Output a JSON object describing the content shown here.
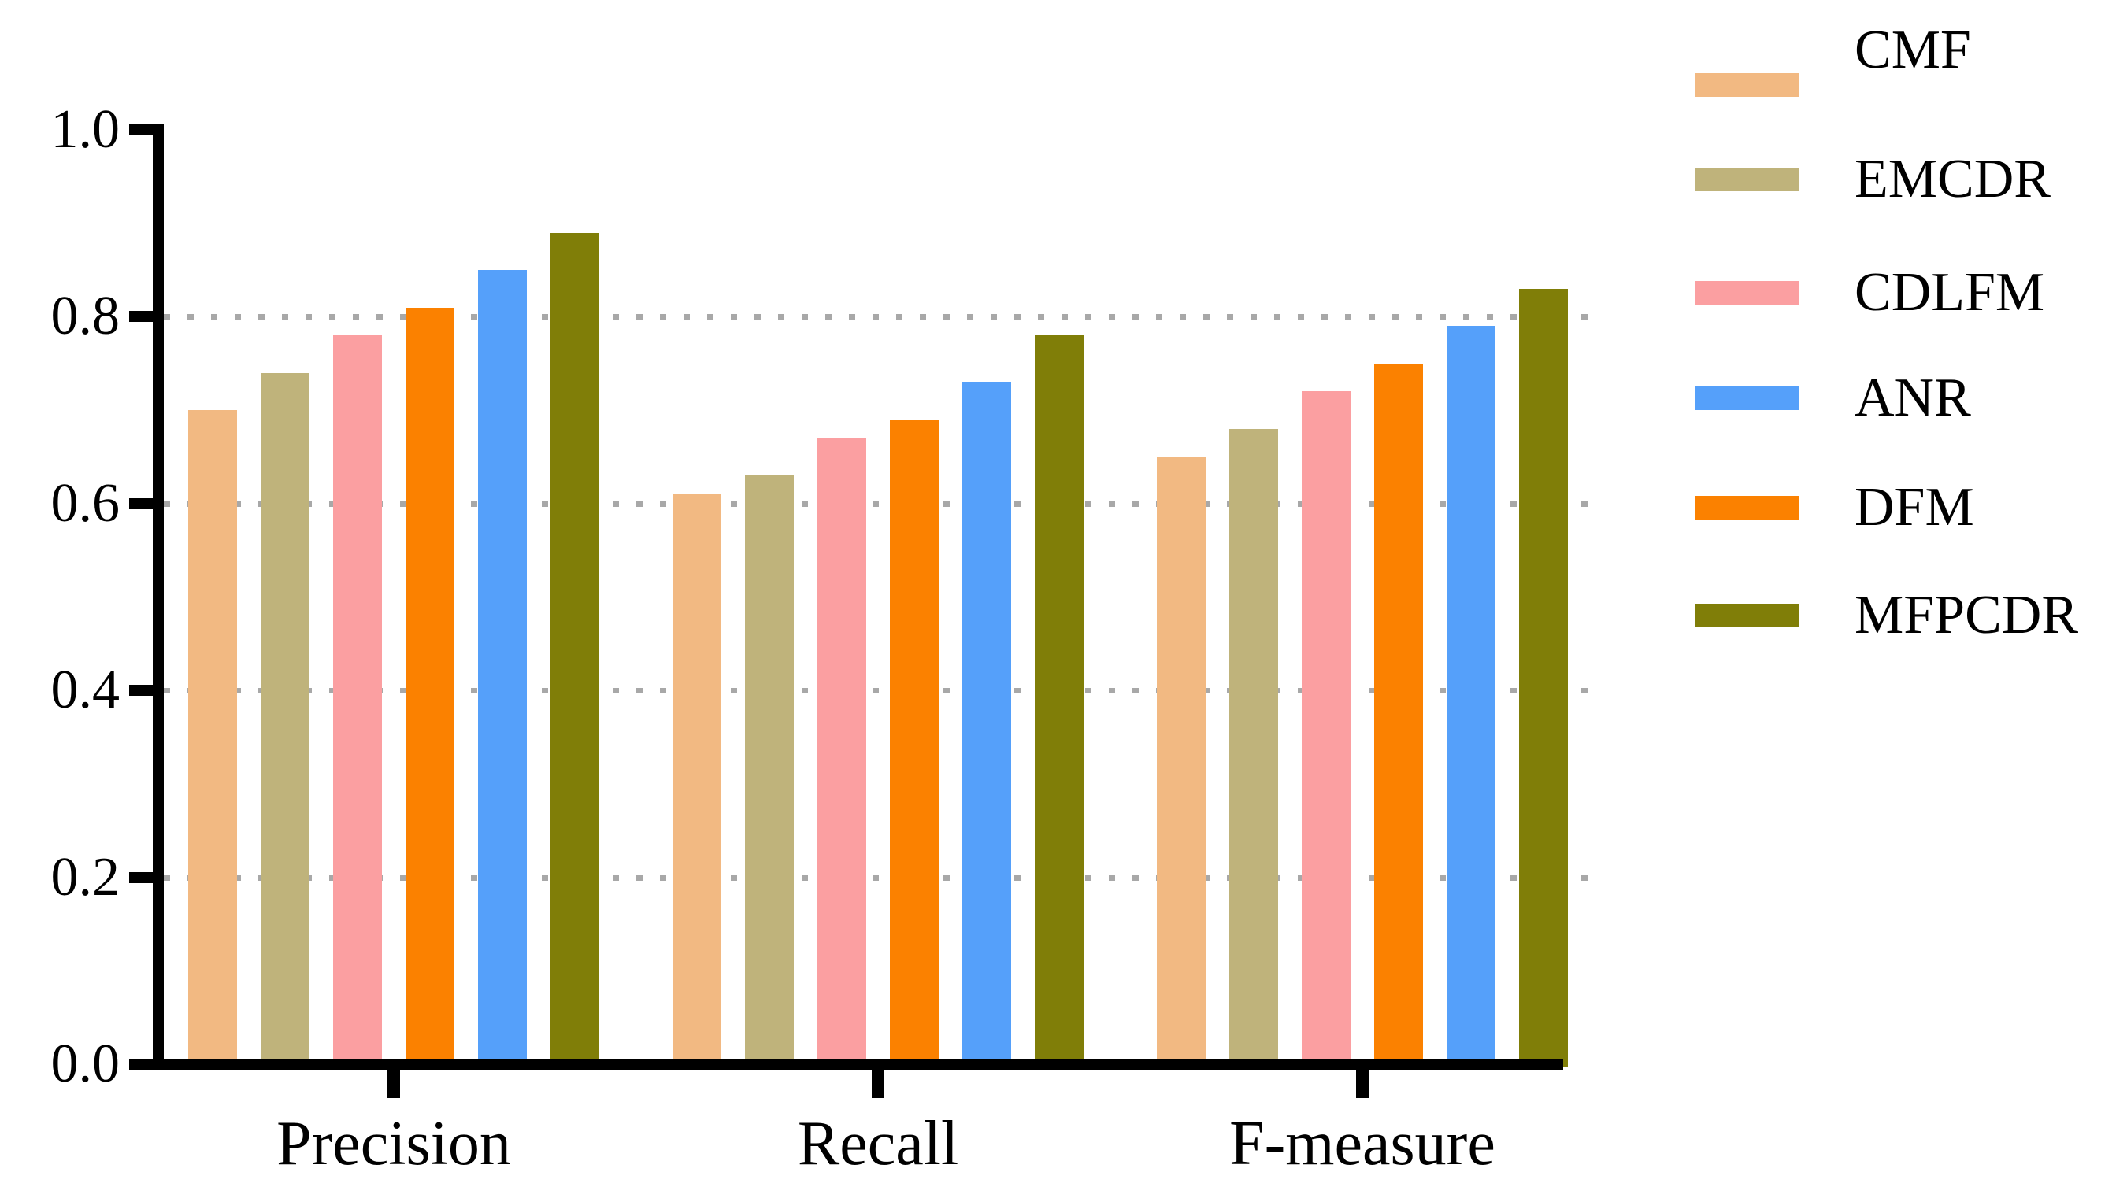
{
  "chart_data": {
    "type": "bar",
    "title": "",
    "xlabel": "",
    "ylabel": "",
    "categories": [
      "Precision",
      "Recall",
      "F-measure"
    ],
    "series": [
      {
        "name": "CMF",
        "color": "#F2B982",
        "values": [
          0.7,
          0.61,
          0.65
        ]
      },
      {
        "name": "EMCDR",
        "color": "#BFB37B",
        "values": [
          0.74,
          0.63,
          0.68
        ]
      },
      {
        "name": "CDLFM",
        "color": "#FB9FA1",
        "values": [
          0.78,
          0.67,
          0.72
        ]
      },
      {
        "name": "ANR",
        "color": "#55A0FA",
        "values": [
          0.85,
          0.73,
          0.79
        ]
      },
      {
        "name": "DFM",
        "color": "#FB8100",
        "values": [
          0.81,
          0.69,
          0.75
        ]
      },
      {
        "name": "MFPCDR",
        "color": "#807E08",
        "values": [
          0.89,
          0.78,
          0.83
        ]
      }
    ],
    "bar_order": [
      "CMF",
      "EMCDR",
      "CDLFM",
      "DFM",
      "ANR",
      "MFPCDR"
    ],
    "legend_order": [
      "CMF",
      "EMCDR",
      "CDLFM",
      "ANR",
      "DFM",
      "MFPCDR"
    ],
    "legend_position": "right",
    "ylim": [
      0.0,
      1.0
    ],
    "yticks": [
      "0.0",
      "0.2",
      "0.4",
      "0.6",
      "0.8",
      "1.0"
    ],
    "grid": "horizontal dotted gray lines at 0.2, 0.4, 0.6, 0.8",
    "axis_color": "#000000",
    "grid_color": "#a8a8a8",
    "background_color": "#ffffff"
  }
}
